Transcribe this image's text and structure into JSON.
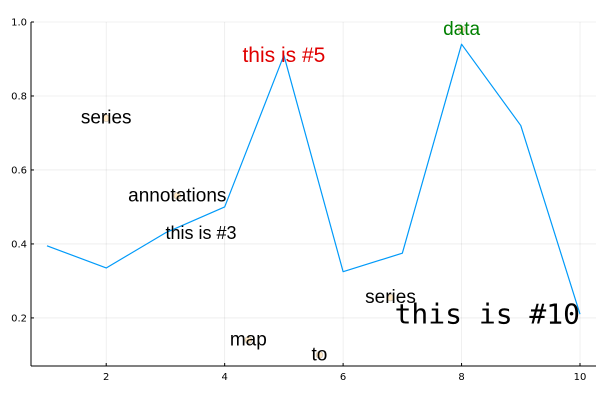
{
  "chart_data": {
    "type": "line",
    "xlim": [
      0.73,
      10.27
    ],
    "ylim": [
      0.07,
      1.0
    ],
    "x_ticks": [
      2,
      4,
      6,
      8,
      10
    ],
    "y_ticks": [
      0.2,
      0.4,
      0.6,
      0.8,
      1.0
    ],
    "x_tick_labels": [
      "2",
      "4",
      "6",
      "8",
      "10"
    ],
    "y_tick_labels": [
      "0.2",
      "0.4",
      "0.6",
      "0.8",
      "1.0"
    ],
    "grid": true,
    "legend": "none",
    "series": [
      {
        "x": [
          1,
          2,
          3,
          4,
          5,
          6,
          7,
          8,
          9,
          10
        ],
        "y": [
          0.395,
          0.335,
          0.43,
          0.5,
          0.91,
          0.325,
          0.375,
          0.94,
          0.72,
          0.21
        ],
        "color": "#009AF9"
      }
    ],
    "markers": [
      {
        "x": 2.0,
        "y": 0.74,
        "r": 0.135,
        "color": "#FFE0B0"
      },
      {
        "x": 3.2,
        "y": 0.53,
        "r": 0.135,
        "color": "#FFE0B0"
      },
      {
        "x": 4.4,
        "y": 0.14,
        "r": 0.135,
        "color": "#FFE0B0"
      },
      {
        "x": 5.6,
        "y": 0.1,
        "r": 0.135,
        "color": "#FFE0B0"
      },
      {
        "x": 6.8,
        "y": 0.255,
        "r": 0.135,
        "color": "#FFE0B0"
      },
      {
        "x": 8.0,
        "y": 0.98,
        "r": 0.135,
        "color": "#FFE0B0"
      }
    ],
    "annotations": [
      {
        "x": 2.0,
        "y": 0.74,
        "text": "series",
        "color": "#000000",
        "size": 19,
        "font": "sans",
        "anchor": "middle"
      },
      {
        "x": 3.2,
        "y": 0.53,
        "text": "annotations",
        "color": "#000000",
        "size": 19,
        "font": "sans",
        "anchor": "middle"
      },
      {
        "x": 4.4,
        "y": 0.14,
        "text": "map",
        "color": "#000000",
        "size": 19,
        "font": "sans",
        "anchor": "middle"
      },
      {
        "x": 5.6,
        "y": 0.1,
        "text": "to",
        "color": "#000000",
        "size": 19,
        "font": "sans",
        "anchor": "middle"
      },
      {
        "x": 6.8,
        "y": 0.255,
        "text": "series",
        "color": "#000000",
        "size": 19,
        "font": "sans",
        "anchor": "middle"
      },
      {
        "x": 8.0,
        "y": 0.98,
        "text": "data",
        "color": "#008000",
        "size": 19,
        "font": "sans",
        "anchor": "middle"
      },
      {
        "x": 3.0,
        "y": 0.43,
        "text": "this is #3",
        "color": "#000000",
        "size": 18,
        "font": "sans",
        "anchor": "start"
      },
      {
        "x": 5.0,
        "y": 0.91,
        "text": "this is #5",
        "color": "#E00000",
        "size": 21,
        "font": "sans",
        "anchor": "middle"
      },
      {
        "x": 10.0,
        "y": 0.21,
        "text": "this is #10",
        "color": "#000000",
        "size": 28,
        "font": "mono",
        "anchor": "end"
      }
    ]
  }
}
